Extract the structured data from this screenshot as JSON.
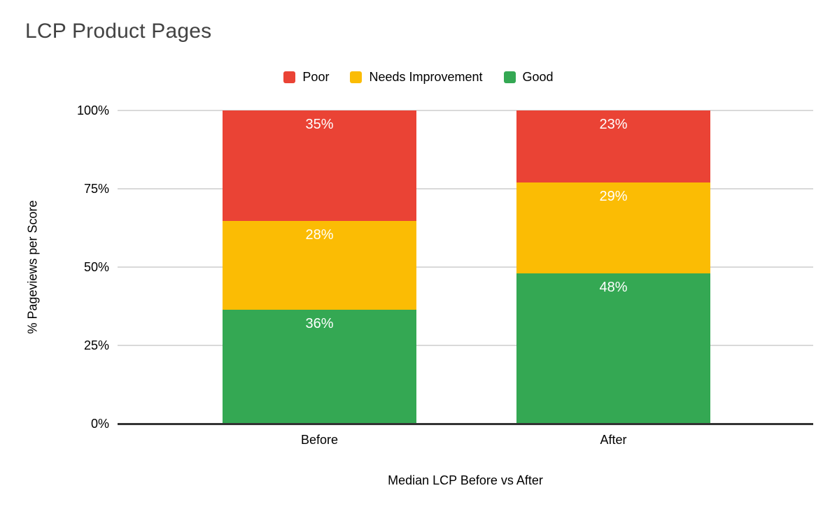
{
  "title": "LCP Product Pages",
  "legend": {
    "items": [
      {
        "label": "Poor",
        "color": "#EA4335"
      },
      {
        "label": "Needs Improvement",
        "color": "#FBBC04"
      },
      {
        "label": "Good",
        "color": "#34A853"
      }
    ]
  },
  "axes": {
    "y_title": "% Pageviews per Score",
    "x_title": "Median LCP Before vs After",
    "y_tick_labels": [
      "0%",
      "25%",
      "50%",
      "75%",
      "100%"
    ],
    "x_tick_labels": [
      "Before",
      "After"
    ]
  },
  "chart_data": {
    "type": "bar",
    "variant": "stacked-column",
    "title": "LCP Product Pages",
    "categories": [
      "Before",
      "After"
    ],
    "series": [
      {
        "name": "Good",
        "color": "#34A853",
        "values": [
          36,
          48
        ]
      },
      {
        "name": "Needs Improvement",
        "color": "#FBBC04",
        "values": [
          28,
          29
        ]
      },
      {
        "name": "Poor",
        "color": "#EA4335",
        "values": [
          35,
          23
        ]
      }
    ],
    "data_labels": [
      [
        "36%",
        "28%",
        "35%"
      ],
      [
        "48%",
        "29%",
        "23%"
      ]
    ],
    "xlabel": "Median LCP Before vs After",
    "ylabel": "% Pageviews per Score",
    "ylim": [
      0,
      100
    ],
    "ytick_values": [
      0,
      25,
      50,
      75,
      100
    ],
    "grid": true,
    "legend_position": "top"
  },
  "colors": {
    "background": "#ffffff",
    "grid": "#d9d9d9",
    "axis": "#333333",
    "title_text": "#424242",
    "label_text": "#000000",
    "bar_label_text": "#ffffff"
  }
}
